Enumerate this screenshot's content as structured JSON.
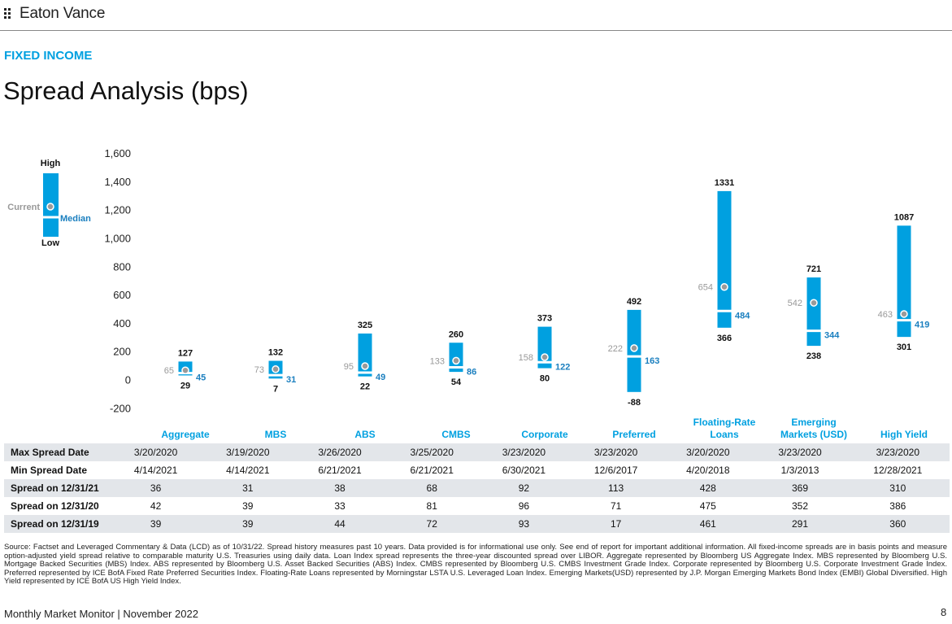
{
  "header": {
    "brand": "Eaton Vance",
    "section": "FIXED INCOME",
    "title": "Spread Analysis (bps)"
  },
  "legend": {
    "high": "High",
    "low": "Low",
    "current": "Current",
    "median": "Median"
  },
  "colors": {
    "bar": "#00a0e0",
    "median_label": "#1a7fbf",
    "current_label": "#999999",
    "dot": "#9a9a9a",
    "accent": "#00a0e0",
    "table_shade": "#e3e6ea"
  },
  "chart_data": {
    "type": "range-bar",
    "title": "Spread Analysis (bps)",
    "ylim": [
      -200,
      1600
    ],
    "yticks": [
      -200,
      0,
      200,
      400,
      600,
      800,
      1000,
      1200,
      1400,
      1600
    ],
    "ytick_labels": [
      "-200",
      "0",
      "200",
      "400",
      "600",
      "800",
      "1,000",
      "1,200",
      "1,400",
      "1,600"
    ],
    "categories": [
      {
        "label": [
          "Aggregate"
        ],
        "high": 127,
        "low": 29,
        "current": 65,
        "median": 45
      },
      {
        "label": [
          "MBS"
        ],
        "high": 132,
        "low": 7,
        "current": 73,
        "median": 31
      },
      {
        "label": [
          "ABS"
        ],
        "high": 325,
        "low": 22,
        "current": 95,
        "median": 49
      },
      {
        "label": [
          "CMBS"
        ],
        "high": 260,
        "low": 54,
        "current": 133,
        "median": 86
      },
      {
        "label": [
          "Corporate"
        ],
        "high": 373,
        "low": 80,
        "current": 158,
        "median": 122
      },
      {
        "label": [
          "Preferred"
        ],
        "high": 492,
        "low": -88,
        "current": 222,
        "median": 163
      },
      {
        "label": [
          "Floating-Rate",
          "Loans"
        ],
        "high": 1331,
        "low": 366,
        "current": 654,
        "median": 484
      },
      {
        "label": [
          "Emerging",
          "Markets (USD)"
        ],
        "high": 721,
        "low": 238,
        "current": 542,
        "median": 344
      },
      {
        "label": [
          "High Yield"
        ],
        "high": 1087,
        "low": 301,
        "current": 463,
        "median": 419
      }
    ]
  },
  "table": {
    "rows": [
      {
        "label": "Max Spread Date",
        "values": [
          "3/20/2020",
          "3/19/2020",
          "3/26/2020",
          "3/25/2020",
          "3/23/2020",
          "3/23/2020",
          "3/20/2020",
          "3/23/2020",
          "3/23/2020"
        ]
      },
      {
        "label": "Min Spread Date",
        "values": [
          "4/14/2021",
          "4/14/2021",
          "6/21/2021",
          "6/21/2021",
          "6/30/2021",
          "12/6/2017",
          "4/20/2018",
          "1/3/2013",
          "12/28/2021"
        ]
      },
      {
        "label": "Spread on 12/31/21",
        "values": [
          "36",
          "31",
          "38",
          "68",
          "92",
          "113",
          "428",
          "369",
          "310"
        ]
      },
      {
        "label": "Spread on 12/31/20",
        "values": [
          "42",
          "39",
          "33",
          "81",
          "96",
          "71",
          "475",
          "352",
          "386"
        ]
      },
      {
        "label": "Spread on 12/31/19",
        "values": [
          "39",
          "39",
          "44",
          "72",
          "93",
          "17",
          "461",
          "291",
          "360"
        ]
      }
    ]
  },
  "footnote": "Source: Factset and Leveraged Commentary & Data (LCD) as of 10/31/22. Spread history measures past 10 years. Data provided is for informational use only. See end of report for important additional information. All fixed-income spreads are in basis points and measure option-adjusted yield spread relative to comparable maturity U.S. Treasuries using daily data. Loan Index spread represents the three-year discounted spread over LIBOR. Aggregate represented by Bloomberg US Aggregate Index. MBS represented by Bloomberg U.S. Mortgage Backed Securities (MBS) Index. ABS represented by Bloomberg U.S. Asset Backed Securities (ABS) Index. CMBS represented by Bloomberg U.S. CMBS Investment Grade Index. Corporate represented by Bloomberg U.S. Corporate Investment Grade Index. Preferred represented by ICE BofA Fixed Rate Preferred Securities Index. Floating-Rate Loans represented by Morningstar LSTA U.S. Leveraged Loan Index. Emerging Markets(USD) represented by J.P. Morgan Emerging Markets Bond Index (EMBI) Global Diversified. High Yield represented by ICE BofA US High Yield Index.",
  "footer": {
    "left": "Monthly Market Monitor | November 2022",
    "page": "8"
  }
}
